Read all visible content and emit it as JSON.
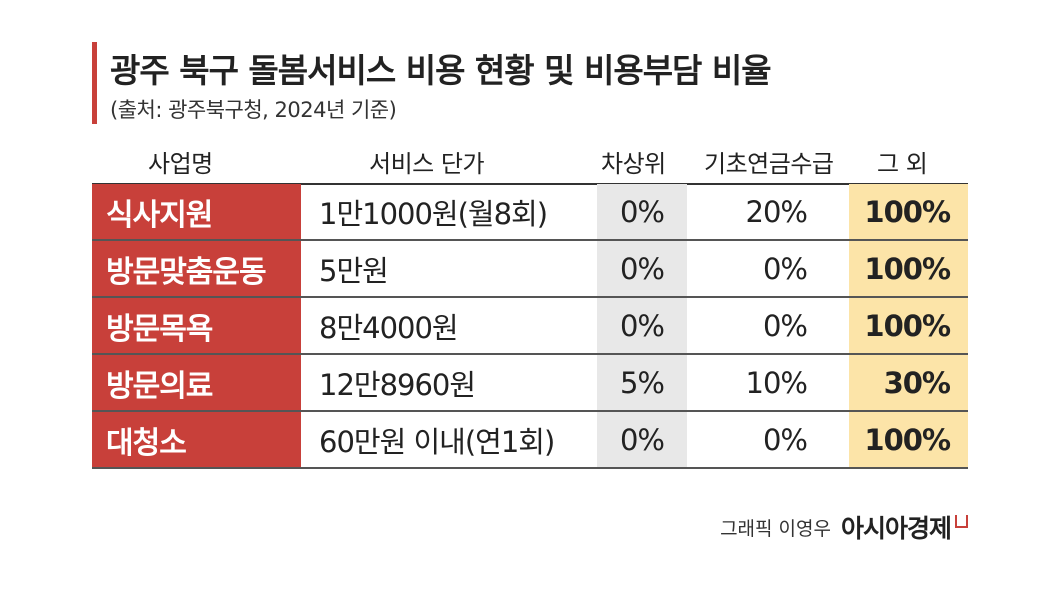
{
  "title": "광주 북구 돌봄서비스 비용 현황 및 비용부담 비율",
  "subtitle": "(출처: 광주북구청, 2024년 기준)",
  "headers": {
    "name": "사업명",
    "price": "서비스 단가",
    "low_income": "차상위",
    "pension": "기초연금수급",
    "other": "그 외"
  },
  "chart_data": {
    "type": "table",
    "columns": [
      "사업명",
      "서비스 단가",
      "차상위",
      "기초연금수급",
      "그 외"
    ],
    "rows": [
      {
        "name": "식사지원",
        "price": "1만1000원(월8회)",
        "low_income": "0%",
        "pension": "20%",
        "other": "100%"
      },
      {
        "name": "방문맞춤운동",
        "price": "5만원",
        "low_income": "0%",
        "pension": "0%",
        "other": "100%"
      },
      {
        "name": "방문목욕",
        "price": "8만4000원",
        "low_income": "0%",
        "pension": "0%",
        "other": "100%"
      },
      {
        "name": "방문의료",
        "price": "12만8960원",
        "low_income": "5%",
        "pension": "10%",
        "other": "30%"
      },
      {
        "name": "대청소",
        "price": "60만원 이내(연1회)",
        "low_income": "0%",
        "pension": "0%",
        "other": "100%"
      }
    ]
  },
  "credit": {
    "graphic": "그래픽 이영우",
    "brand": "아시아경제"
  },
  "colors": {
    "accent_red": "#c8403a",
    "gray_column": "#e8e8e8",
    "yellow_column": "#fce4a8"
  }
}
